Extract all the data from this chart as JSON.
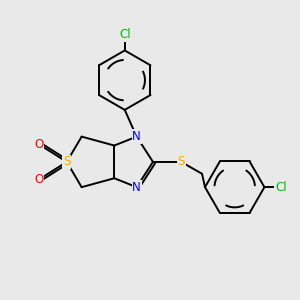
{
  "bg_color": "#e9e9e9",
  "atom_colors": {
    "N": "#0000ff",
    "S": "#ffa500",
    "O": "#ff0000",
    "Cl": "#00bb00"
  },
  "bond_color": "#000000",
  "lw": 1.4,
  "fontsize": 8.5
}
